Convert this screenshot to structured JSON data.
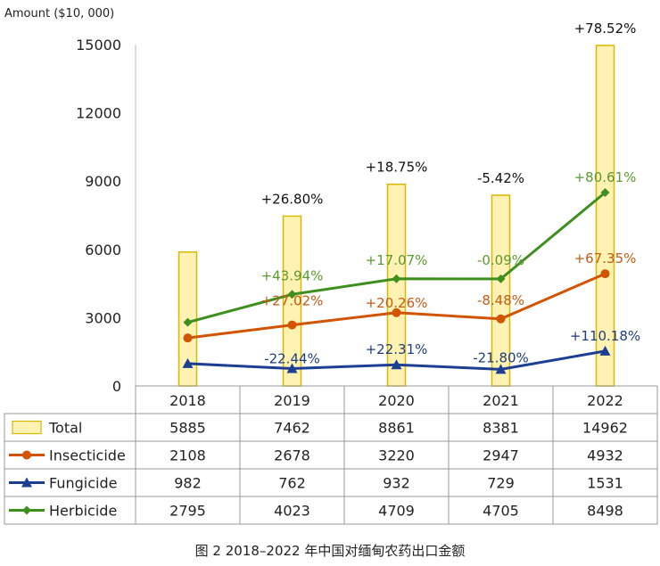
{
  "chart_data": {
    "type": "bar",
    "ylabel": "Amount ($10, 000)",
    "ylim": [
      0,
      15000
    ],
    "yticks": [
      0,
      3000,
      6000,
      9000,
      12000,
      15000
    ],
    "categories": [
      "2018",
      "2019",
      "2020",
      "2021",
      "2022"
    ],
    "grid": false,
    "legend": "data-table",
    "series": [
      {
        "name": "Total",
        "kind": "bar",
        "color": "#fff2b3",
        "edge": "#d8b800",
        "values": [
          5885,
          7462,
          8861,
          8381,
          14962
        ],
        "growth_labels": [
          "",
          "+26.80%",
          "+18.75%",
          "-5.42%",
          "+78.52%"
        ],
        "label_color": "#111111"
      },
      {
        "name": "Insecticide",
        "kind": "line",
        "marker": "circle",
        "color": "#d35400",
        "values": [
          2108,
          2678,
          3220,
          2947,
          4932
        ],
        "growth_labels": [
          "",
          "+27.02%",
          "+20.26%",
          "-8.48%",
          "+67.35%"
        ],
        "label_color": "#c55a11"
      },
      {
        "name": "Fungicide",
        "kind": "line",
        "marker": "triangle",
        "color": "#1c3f94",
        "values": [
          982,
          762,
          932,
          729,
          1531
        ],
        "growth_labels": [
          "",
          "-22.44%",
          "+22.31%",
          "-21.80%",
          "+110.18%"
        ],
        "label_color": "#1f3d7a"
      },
      {
        "name": "Herbicide",
        "kind": "line",
        "marker": "diamond",
        "color": "#3f8f1f",
        "values": [
          2795,
          4023,
          4709,
          4705,
          8498
        ],
        "growth_labels": [
          "",
          "+43.94%",
          "+17.07%",
          "-0.09%",
          "+80.61%"
        ],
        "label_color": "#5a9a2e"
      }
    ]
  },
  "caption": "图 2  2018–2022 年中国对缅甸农药出口金额"
}
